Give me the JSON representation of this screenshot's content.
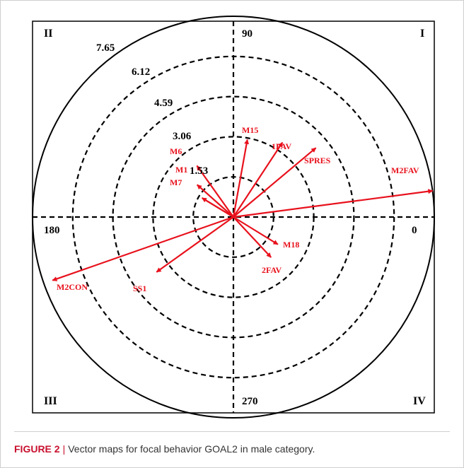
{
  "chart_data": {
    "type": "polar-vector",
    "quadrants": [
      "I",
      "II",
      "III",
      "IV"
    ],
    "angle_labels": [
      "90",
      "180",
      "0",
      "270"
    ],
    "ring_labels": [
      "7.65",
      "6.12",
      "4.59",
      "3.06",
      "1.53"
    ],
    "rings": [
      1.53,
      3.06,
      4.59,
      6.12
    ],
    "max_radius": 7.65,
    "grid": true,
    "vectors": [
      {
        "label": "M15",
        "angle": 79.8,
        "magnitude": 3.0
      },
      {
        "label": "1FAV",
        "angle": 56.7,
        "magnitude": 3.4
      },
      {
        "label": "SPRES",
        "angle": 40.0,
        "magnitude": 4.1
      },
      {
        "label": "M2FAV",
        "angle": 7.5,
        "magnitude": 7.65
      },
      {
        "label": "M6",
        "angle": 125.4,
        "magnitude": 2.4
      },
      {
        "label": "M1",
        "angle": 138.3,
        "magnitude": 1.85
      },
      {
        "label": "M7",
        "angle": 148.7,
        "magnitude": 1.4
      },
      {
        "label": "M18",
        "angle": -31.6,
        "magnitude": 1.99
      },
      {
        "label": "2FAV",
        "angle": -47.0,
        "magnitude": 2.1
      },
      {
        "label": "M2CON",
        "angle": 199.3,
        "magnitude": 7.3
      },
      {
        "label": "SS1",
        "angle": 215.6,
        "magnitude": 3.6
      }
    ],
    "colors": {
      "vector": "#e8111c",
      "grid": "#000000"
    }
  },
  "caption": {
    "label": "FIGURE 2",
    "separator": "|",
    "text": "Vector maps for focal behavior GOAL2 in male category."
  }
}
